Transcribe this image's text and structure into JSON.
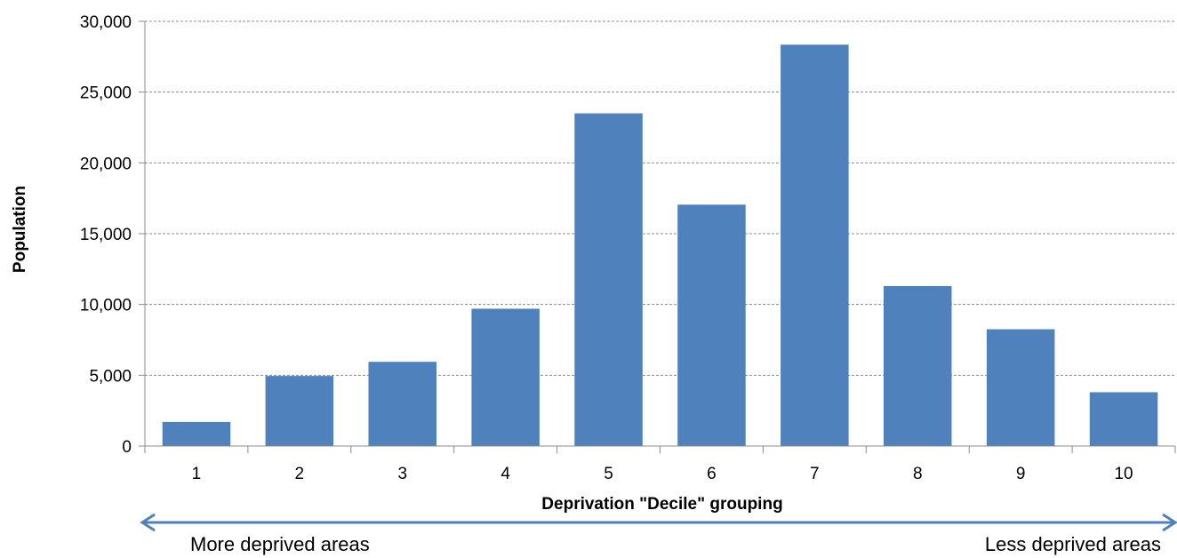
{
  "chart_data": {
    "type": "bar",
    "categories": [
      "1",
      "2",
      "3",
      "4",
      "5",
      "6",
      "7",
      "8",
      "9",
      "10"
    ],
    "values": [
      1700,
      4950,
      5950,
      9700,
      23500,
      17050,
      28350,
      11300,
      8250,
      3800
    ],
    "xlabel": "Deprivation \"Decile\" grouping",
    "ylabel": "Population",
    "ylim": [
      0,
      30000
    ],
    "yticks": [
      0,
      5000,
      10000,
      15000,
      20000,
      25000,
      30000
    ],
    "ytick_labels": [
      "0",
      "5,000",
      "10,000",
      "15,000",
      "20,000",
      "25,000",
      "30,000"
    ],
    "grid": true,
    "bar_color": "#4F81BD",
    "arrow_color": "#4F81BD",
    "arrow_left_label": "More deprived areas",
    "arrow_right_label": "Less deprived areas"
  }
}
